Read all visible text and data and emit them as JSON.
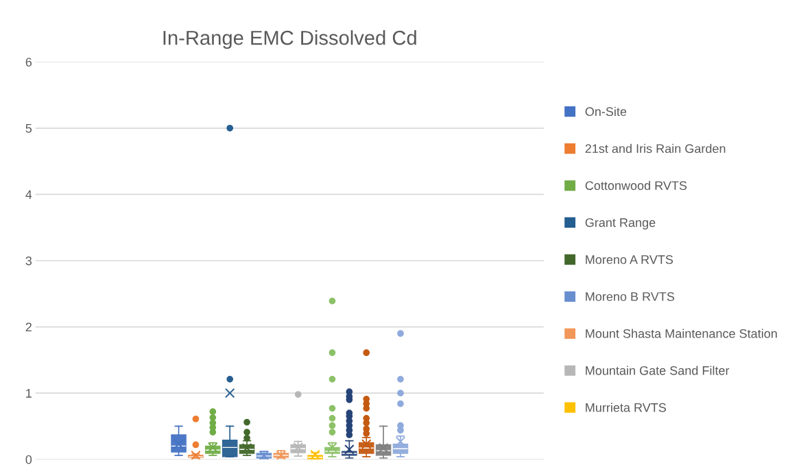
{
  "chart_data": {
    "type": "box",
    "title": "In-Range EMC Dissolved Cd",
    "categories": [
      null
    ],
    "ylim": [
      0,
      6
    ],
    "yticks": [
      0,
      1,
      2,
      3,
      4,
      5,
      6
    ],
    "grid": "y",
    "legend": "right",
    "series": [
      {
        "name": "On-Site",
        "color": "#4472c4",
        "boxes": [
          {
            "low": 0.06,
            "q1": 0.11,
            "median": 0.2,
            "q3": 0.37,
            "high": 0.5,
            "mean": 0.23
          }
        ]
      },
      {
        "name": "21st and Iris Rain Garden",
        "color": "#ed7d31",
        "boxes": [
          {
            "low": 0.02,
            "q1": 0.03,
            "median": 0.04,
            "q3": 0.06,
            "high": 0.08,
            "mean": 0.06,
            "outliers": [
              0.22,
              0.61
            ]
          }
        ]
      },
      {
        "name": "Cottonwood RVTS",
        "color": "#70ad47",
        "boxes": [
          {
            "low": 0.06,
            "q1": 0.09,
            "median": 0.14,
            "q3": 0.2,
            "high": 0.25,
            "mean": 0.18,
            "outliers": [
              0.41,
              0.48,
              0.55,
              0.63,
              0.72
            ]
          }
        ]
      },
      {
        "name": "Grant Range",
        "color": "#255e91",
        "boxes": [
          {
            "low": 0.04,
            "q1": 0.04,
            "median": 0.18,
            "q3": 0.29,
            "high": 0.5,
            "mean": 1.0,
            "outliers": [
              1.21,
              5.0
            ]
          }
        ]
      },
      {
        "name": "Moreno A RVTS",
        "color": "#43682b",
        "boxes": [
          {
            "low": 0.06,
            "q1": 0.09,
            "median": 0.15,
            "q3": 0.22,
            "high": 0.28,
            "mean": 0.17,
            "outliers": [
              0.32,
              0.41,
              0.56
            ]
          }
        ]
      },
      {
        "name": "Moreno B RVTS",
        "color": "#698ed0",
        "boxes": [
          {
            "low": 0.01,
            "q1": 0.02,
            "median": 0.05,
            "q3": 0.09,
            "high": 0.12,
            "mean": 0.06
          }
        ]
      },
      {
        "name": "Mount Shasta Maintenance Station",
        "color": "#f1975a",
        "boxes": [
          {
            "low": 0.02,
            "q1": 0.03,
            "median": 0.06,
            "q3": 0.09,
            "high": 0.13,
            "mean": 0.06
          }
        ]
      },
      {
        "name": "Mountain Gate Sand Filter",
        "color": "#b7b7b7",
        "boxes": [
          {
            "low": 0.05,
            "q1": 0.1,
            "median": 0.16,
            "q3": 0.22,
            "high": 0.27,
            "mean": 0.18,
            "outliers": [
              0.98
            ]
          }
        ]
      },
      {
        "name": "Murrieta RVTS",
        "color": "#ffc000",
        "boxes": [
          {
            "low": 0.0,
            "q1": 0.0,
            "median": 0.03,
            "q3": 0.06,
            "high": 0.1,
            "mean": 0.07
          }
        ]
      },
      {
        "color": "#8cc168",
        "boxes": [
          {
            "low": 0.04,
            "q1": 0.09,
            "median": 0.12,
            "q3": 0.18,
            "high": 0.25,
            "mean": 0.18,
            "outliers": [
              0.41,
              0.51,
              0.62,
              0.77,
              1.21,
              1.61,
              2.39
            ]
          }
        ]
      },
      {
        "color": "#264478",
        "boxes": [
          {
            "low": 0.02,
            "q1": 0.06,
            "median": 0.09,
            "q3": 0.12,
            "high": 0.28,
            "mean": 0.15,
            "outliers": [
              0.37,
              0.44,
              0.51,
              0.58,
              0.65,
              0.7,
              0.9,
              0.95,
              1.02
            ]
          }
        ]
      },
      {
        "color": "#c55a11",
        "boxes": [
          {
            "low": 0.04,
            "q1": 0.09,
            "median": 0.17,
            "q3": 0.25,
            "high": 0.33,
            "mean": 0.23,
            "outliers": [
              0.39,
              0.46,
              0.55,
              0.62,
              0.77,
              0.84,
              0.91,
              1.61
            ]
          }
        ]
      },
      {
        "color": "#7f7f7f",
        "boxes": [
          {
            "low": 0.02,
            "q1": 0.06,
            "median": 0.13,
            "q3": 0.22,
            "high": 0.5,
            "mean": 0.17
          }
        ]
      },
      {
        "color": "#8faadc",
        "boxes": [
          {
            "low": 0.04,
            "q1": 0.09,
            "median": 0.16,
            "q3": 0.23,
            "high": 0.35,
            "mean": 0.27,
            "outliers": [
              0.44,
              0.51,
              0.84,
              1.0,
              1.21,
              1.9
            ]
          }
        ]
      }
    ]
  }
}
